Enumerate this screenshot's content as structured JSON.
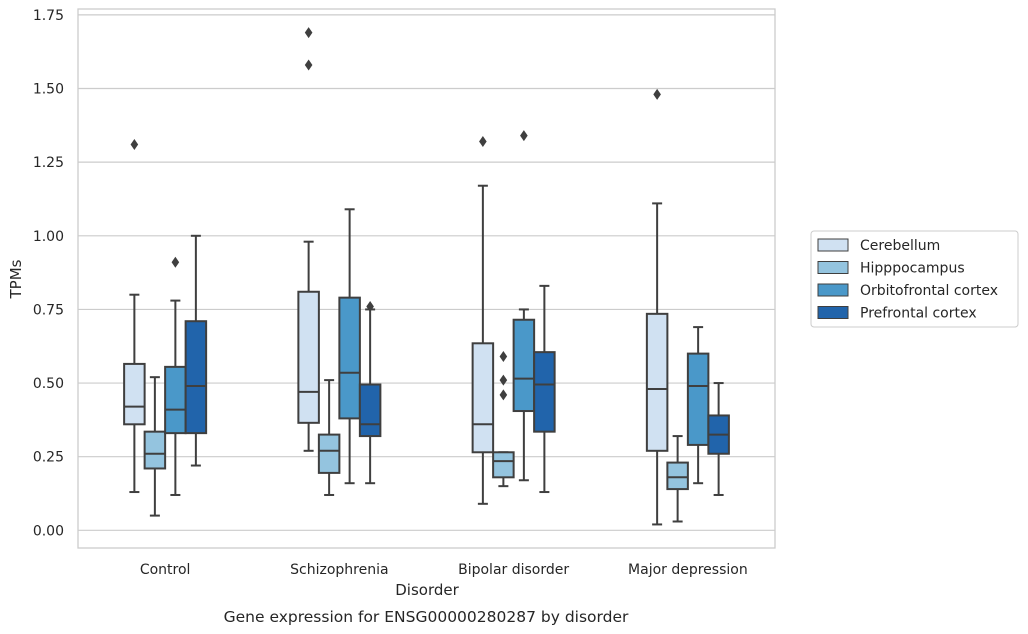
{
  "chart_data": {
    "type": "box",
    "caption": "Gene expression for ENSG00000280287 by disorder",
    "xlabel": "Disorder",
    "ylabel": "TPMs",
    "ylim": [
      -0.06,
      1.77
    ],
    "yticks": [
      0.0,
      0.25,
      0.5,
      0.75,
      1.0,
      1.25,
      1.5,
      1.75
    ],
    "ytick_labels": [
      "0.00",
      "0.25",
      "0.50",
      "0.75",
      "1.00",
      "1.25",
      "1.50",
      "1.75"
    ],
    "grid": true,
    "legend_position": "right-outside",
    "categories": [
      "Control",
      "Schizophrenia",
      "Bipolar disorder",
      "Major depression"
    ],
    "series": [
      {
        "name": "Cerebellum",
        "color": "#d0e1f2",
        "boxes": [
          {
            "whislo": 0.13,
            "q1": 0.36,
            "med": 0.42,
            "q3": 0.565,
            "whishi": 0.8,
            "fliers": [
              1.31
            ]
          },
          {
            "whislo": 0.27,
            "q1": 0.365,
            "med": 0.47,
            "q3": 0.81,
            "whishi": 0.98,
            "fliers": [
              1.58,
              1.69
            ]
          },
          {
            "whislo": 0.09,
            "q1": 0.265,
            "med": 0.36,
            "q3": 0.635,
            "whishi": 1.17,
            "fliers": [
              1.32
            ]
          },
          {
            "whislo": 0.02,
            "q1": 0.27,
            "med": 0.48,
            "q3": 0.735,
            "whishi": 1.11,
            "fliers": [
              1.48
            ]
          }
        ]
      },
      {
        "name": "Hipppocampus",
        "color": "#94c4df",
        "boxes": [
          {
            "whislo": 0.05,
            "q1": 0.21,
            "med": 0.26,
            "q3": 0.335,
            "whishi": 0.52,
            "fliers": []
          },
          {
            "whislo": 0.12,
            "q1": 0.195,
            "med": 0.27,
            "q3": 0.325,
            "whishi": 0.51,
            "fliers": []
          },
          {
            "whislo": 0.15,
            "q1": 0.18,
            "med": 0.235,
            "q3": 0.265,
            "whishi": 0.265,
            "fliers": [
              0.46,
              0.51,
              0.59
            ]
          },
          {
            "whislo": 0.03,
            "q1": 0.14,
            "med": 0.18,
            "q3": 0.23,
            "whishi": 0.32,
            "fliers": []
          }
        ]
      },
      {
        "name": "Orbitofrontal cortex",
        "color": "#4a98c9",
        "boxes": [
          {
            "whislo": 0.12,
            "q1": 0.33,
            "med": 0.41,
            "q3": 0.555,
            "whishi": 0.78,
            "fliers": [
              0.91
            ]
          },
          {
            "whislo": 0.16,
            "q1": 0.38,
            "med": 0.535,
            "q3": 0.79,
            "whishi": 1.09,
            "fliers": []
          },
          {
            "whislo": 0.17,
            "q1": 0.405,
            "med": 0.515,
            "q3": 0.715,
            "whishi": 0.75,
            "fliers": [
              1.34
            ]
          },
          {
            "whislo": 0.16,
            "q1": 0.29,
            "med": 0.49,
            "q3": 0.6,
            "whishi": 0.69,
            "fliers": []
          }
        ]
      },
      {
        "name": "Prefrontal cortex",
        "color": "#2164ab",
        "boxes": [
          {
            "whislo": 0.22,
            "q1": 0.33,
            "med": 0.49,
            "q3": 0.71,
            "whishi": 1.0,
            "fliers": []
          },
          {
            "whislo": 0.16,
            "q1": 0.32,
            "med": 0.36,
            "q3": 0.495,
            "whishi": 0.75,
            "fliers": [
              0.76
            ]
          },
          {
            "whislo": 0.13,
            "q1": 0.335,
            "med": 0.495,
            "q3": 0.605,
            "whishi": 0.83,
            "fliers": []
          },
          {
            "whislo": 0.12,
            "q1": 0.26,
            "med": 0.325,
            "q3": 0.39,
            "whishi": 0.5,
            "fliers": []
          }
        ]
      }
    ]
  }
}
